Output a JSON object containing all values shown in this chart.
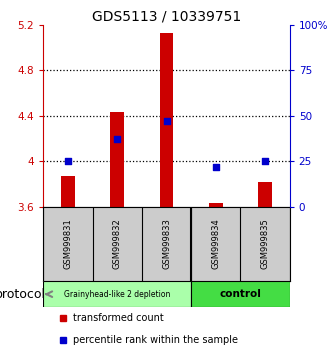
{
  "title": "GDS5113 / 10339751",
  "samples": [
    "GSM999831",
    "GSM999832",
    "GSM999833",
    "GSM999834",
    "GSM999835"
  ],
  "bar_bottoms": [
    3.6,
    3.6,
    3.6,
    3.6,
    3.6
  ],
  "bar_tops": [
    3.87,
    4.43,
    5.13,
    3.63,
    3.82
  ],
  "percentile_ranks": [
    25,
    37,
    47,
    22,
    25
  ],
  "ylim_left": [
    3.6,
    5.2
  ],
  "ylim_right": [
    0,
    100
  ],
  "yticks_left": [
    3.6,
    4.0,
    4.4,
    4.8,
    5.2
  ],
  "ytick_labels_left": [
    "3.6",
    "4",
    "4.4",
    "4.8",
    "5.2"
  ],
  "yticks_right": [
    0,
    25,
    50,
    75,
    100
  ],
  "ytick_labels_right": [
    "0",
    "25",
    "50",
    "75",
    "100%"
  ],
  "hlines": [
    4.0,
    4.4,
    4.8
  ],
  "bar_color": "#cc0000",
  "percentile_color": "#0000cc",
  "group1_label": "Grainyhead-like 2 depletion",
  "group2_label": "control",
  "group1_bg": "#aaffaa",
  "group2_bg": "#44dd44",
  "sample_bg": "#cccccc",
  "legend_red_label": "transformed count",
  "legend_blue_label": "percentile rank within the sample",
  "protocol_label": "protocol",
  "title_fontsize": 10,
  "tick_fontsize": 7.5,
  "sample_fontsize": 6,
  "legend_fontsize": 7
}
